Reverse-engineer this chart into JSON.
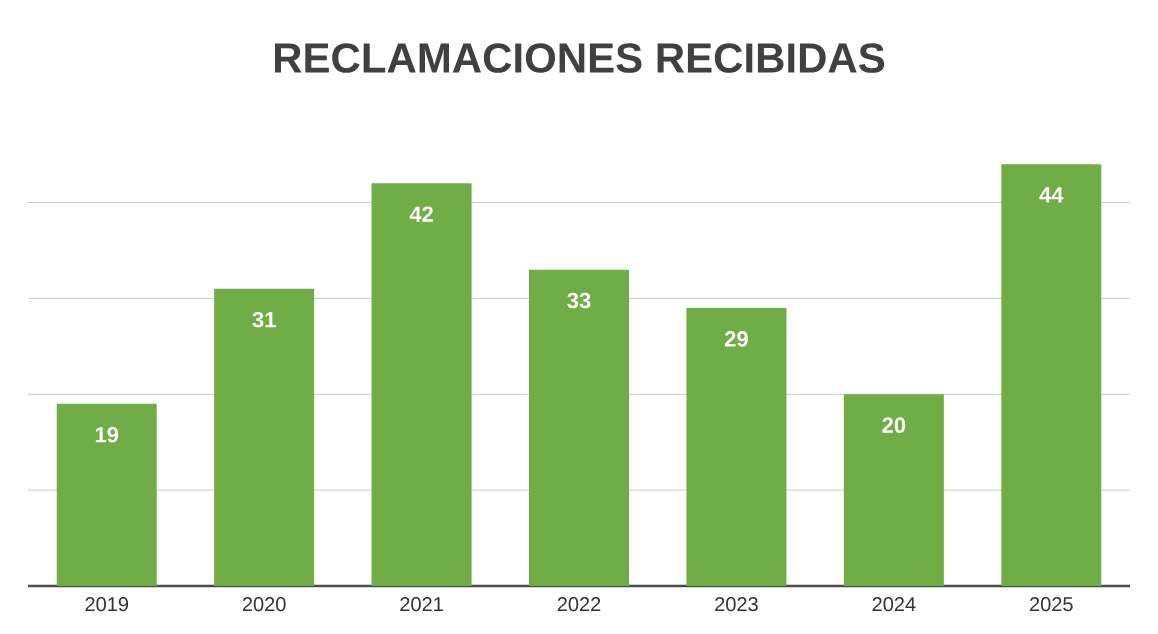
{
  "chart_data": {
    "type": "bar",
    "title": "RECLAMACIONES RECIBIDAS",
    "categories": [
      "2019",
      "2020",
      "2021",
      "2022",
      "2023",
      "2024",
      "2025"
    ],
    "values": [
      19,
      31,
      42,
      33,
      29,
      20,
      44
    ],
    "color": "#70ad47",
    "grid": "y",
    "tick_labels": "x",
    "data_labels": true
  }
}
